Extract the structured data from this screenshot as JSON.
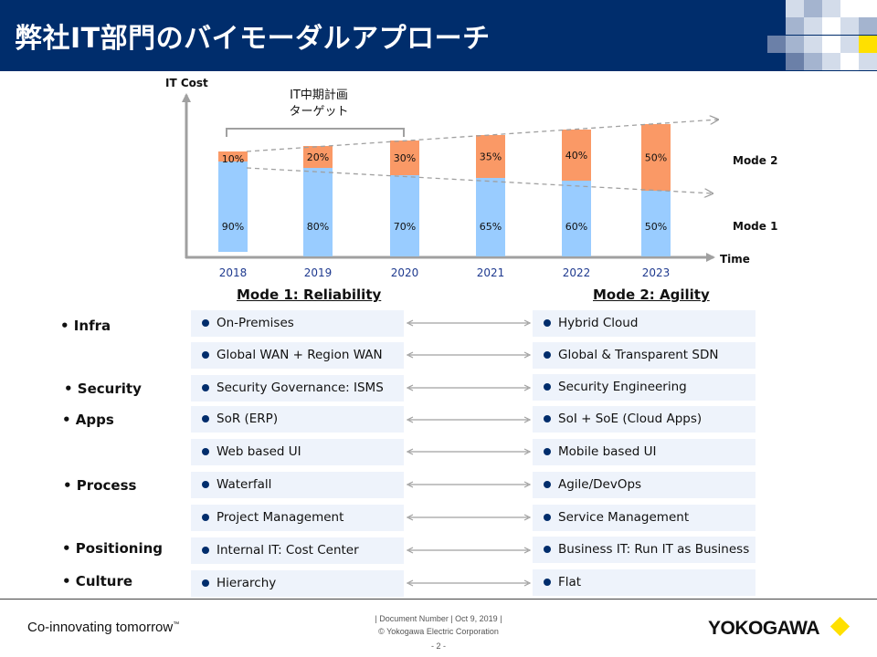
{
  "header": {
    "title": "弊社IT部門のバイモーダルアプローチ",
    "mosaic_colors": [
      "#ffffff",
      "#d3dcea",
      "#a4b4cf",
      "#6b80a8",
      "#ffe000"
    ]
  },
  "chart_data": {
    "type": "bar",
    "stacked": true,
    "ylabel": "IT Cost",
    "xlabel": "Time",
    "categories": [
      "2018",
      "2019",
      "2020",
      "2021",
      "2022",
      "2023"
    ],
    "series": [
      {
        "name": "Mode 1",
        "values": [
          90,
          80,
          70,
          65,
          60,
          50
        ],
        "color": "#99ccff"
      },
      {
        "name": "Mode 2",
        "values": [
          10,
          20,
          30,
          35,
          40,
          50
        ],
        "color": "#fa9966"
      }
    ],
    "value_labels": {
      "mode1": [
        "90%",
        "80%",
        "70%",
        "65%",
        "60%",
        "50%"
      ],
      "mode2": [
        "10%",
        "20%",
        "30%",
        "35%",
        "40%",
        "50%"
      ]
    },
    "bracket_label_line1": "IT中期計画",
    "bracket_label_line2": "ターゲット",
    "legend_mode2": "Mode 2",
    "legend_mode1": "Mode 1"
  },
  "columns": {
    "left_title": "Mode 1: Reliability",
    "right_title": "Mode 2: Agility"
  },
  "categories": [
    "• Infra",
    "• Security",
    "• Apps",
    "• Process",
    "• Positioning",
    "• Culture"
  ],
  "rows": [
    {
      "left": "On-Premises",
      "right": "Hybrid Cloud"
    },
    {
      "left": "Global WAN + Region WAN",
      "right": "Global & Transparent SDN"
    },
    {
      "left": "Security Governance: ISMS",
      "right": "Security Engineering"
    },
    {
      "left": "SoR (ERP)",
      "right": "SoI + SoE (Cloud Apps)"
    },
    {
      "left": "Web based UI",
      "right": "Mobile based UI"
    },
    {
      "left": "Waterfall",
      "right": "Agile/DevOps"
    },
    {
      "left": "Project Management",
      "right": "Service Management"
    },
    {
      "left": "Internal IT: Cost Center",
      "right": "Business IT: Run IT as Business"
    },
    {
      "left": "Hierarchy",
      "right": "Flat"
    }
  ],
  "footer": {
    "tagline": "Co-innovating tomorrow",
    "trademark": "™",
    "doc_line": "| Document Number | Oct 9, 2019 |",
    "copyright": "© Yokogawa Electric Corporation",
    "page": "- 2 -",
    "logo": "YOKOGAWA"
  }
}
